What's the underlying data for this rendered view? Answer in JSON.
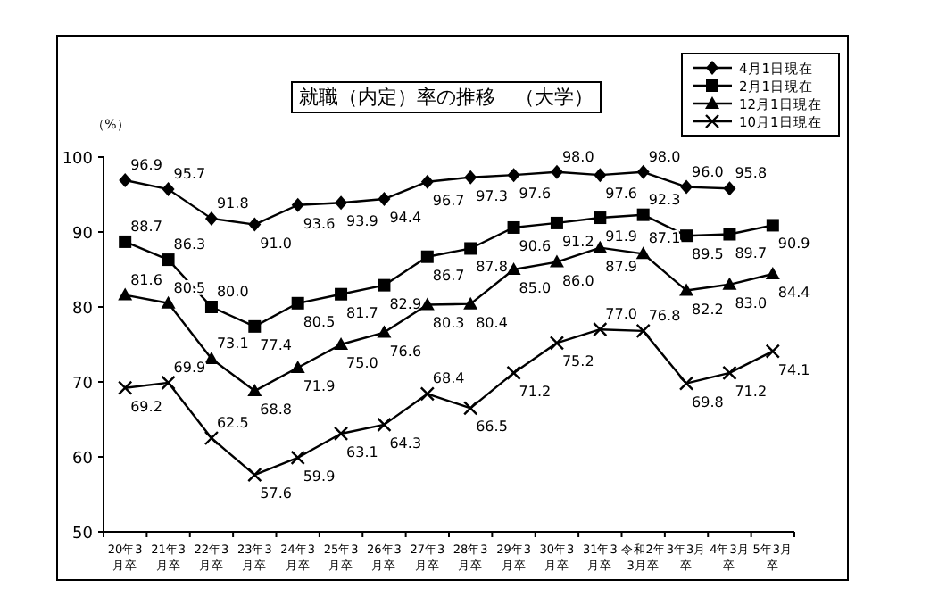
{
  "chart_data": {
    "type": "line",
    "title": "就職（内定）率の推移　（大学）",
    "annotations": [
      "（%）"
    ],
    "categories": [
      "20年3月卒",
      "21年3月卒",
      "22年3月卒",
      "23年3月卒",
      "24年3月卒",
      "25年3月卒",
      "26年3月卒",
      "27年3月卒",
      "28年3月卒",
      "29年3月卒",
      "30年3月卒",
      "31年3月卒",
      "令和2年3月卒",
      "3年3月卒",
      "4年3月卒",
      "5年3月卒"
    ],
    "series": [
      {
        "name": "4月1日現在",
        "color": "#000000",
        "marker": "diamond",
        "values": [
          96.9,
          95.7,
          91.8,
          91.0,
          93.6,
          93.9,
          94.4,
          96.7,
          97.3,
          97.6,
          98.0,
          97.6,
          98.0,
          96.0,
          95.8,
          null
        ],
        "value_labels": [
          "96.9",
          "95.7",
          "91.8",
          "91.0",
          "93.6",
          "93.9",
          "94.4",
          "96.7",
          "97.3",
          "97.6",
          "98.0",
          "97.6",
          "98.0",
          "96.0",
          "95.8",
          null
        ]
      },
      {
        "name": "2月1日現在",
        "color": "#000000",
        "marker": "square",
        "values": [
          88.7,
          86.3,
          80.0,
          77.4,
          80.5,
          81.7,
          82.9,
          86.7,
          87.8,
          90.6,
          91.2,
          91.9,
          92.3,
          89.5,
          89.7,
          90.9
        ],
        "value_labels": [
          "88.7",
          "86.3",
          "80.0",
          "77.4",
          "80.5",
          "81.7",
          "82.9",
          "86.7",
          "87.8",
          "90.6",
          "91.2",
          "91.9",
          "92.3",
          "89.5",
          "89.7",
          "90.9"
        ]
      },
      {
        "name": "12月1日現在",
        "color": "#000000",
        "marker": "triangle",
        "values": [
          81.6,
          80.5,
          73.1,
          68.8,
          71.9,
          75.0,
          76.6,
          80.3,
          80.4,
          85.0,
          86.0,
          87.9,
          87.1,
          82.2,
          83.0,
          84.4
        ],
        "value_labels": [
          "81.6",
          "80.5",
          "73.1",
          "68.8",
          "71.9",
          "75.0",
          "76.6",
          "80.3",
          "80.4",
          "85.0",
          "86.0",
          "87.9",
          "87.1",
          "82.2",
          "83.0",
          "84.4"
        ]
      },
      {
        "name": "10月1日現在",
        "color": "#000000",
        "marker": "cross",
        "values": [
          69.2,
          69.9,
          62.5,
          57.6,
          59.9,
          63.1,
          64.3,
          68.4,
          66.5,
          71.2,
          75.2,
          77.0,
          76.8,
          69.8,
          71.2,
          74.1
        ],
        "value_labels": [
          "69.2",
          "69.9",
          "62.5",
          "57.6",
          "59.9",
          "63.1",
          "64.3",
          "68.4",
          "66.5",
          "71.2",
          "75.2",
          "77.0",
          "76.8",
          "69.8",
          "71.2",
          "74.1"
        ]
      }
    ],
    "ylim": [
      50,
      100
    ],
    "yticks": [
      50,
      60,
      70,
      80,
      90,
      100
    ],
    "grid": false,
    "legend": "top right",
    "line_style": "solid"
  }
}
